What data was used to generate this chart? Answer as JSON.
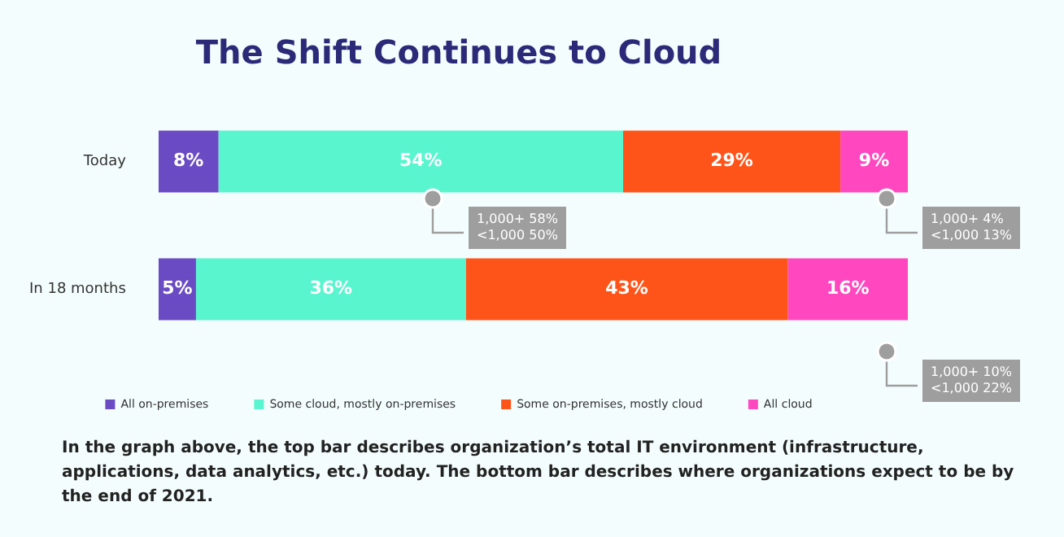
{
  "chart_data": {
    "type": "bar",
    "orientation": "horizontal",
    "stacked": true,
    "title": "The Shift Continues to Cloud",
    "categories": [
      "Today",
      "In 18 months"
    ],
    "series": [
      {
        "name": "All on-premises",
        "color": "#6a4bc4",
        "values": [
          8,
          5
        ],
        "value_labels": [
          "8%",
          "5%"
        ]
      },
      {
        "name": "Some cloud, mostly on-premises",
        "color": "#58f5cf",
        "values": [
          54,
          36
        ],
        "value_labels": [
          "54%",
          "36%"
        ]
      },
      {
        "name": "Some on-premises, mostly cloud",
        "color": "#ff5419",
        "values": [
          29,
          43
        ],
        "value_labels": [
          "29%",
          "43%"
        ]
      },
      {
        "name": "All cloud",
        "color": "#ff47bf",
        "values": [
          9,
          16
        ],
        "value_labels": [
          "9%",
          "16%"
        ]
      }
    ],
    "tick_labels": "y",
    "legend": "bottom",
    "annotations": [
      "1,000+ 58%\n<1,000 50%",
      "1,000+ 4%\n<1,000 13%",
      "1,000+ 10%\n<1,000 22%",
      "In the graph above, the top bar describes organization’s total IT environment (infrastructure, applications, data analytics, etc.) today. The bottom bar describes where organizations expect to be by the end of 2021."
    ]
  }
}
